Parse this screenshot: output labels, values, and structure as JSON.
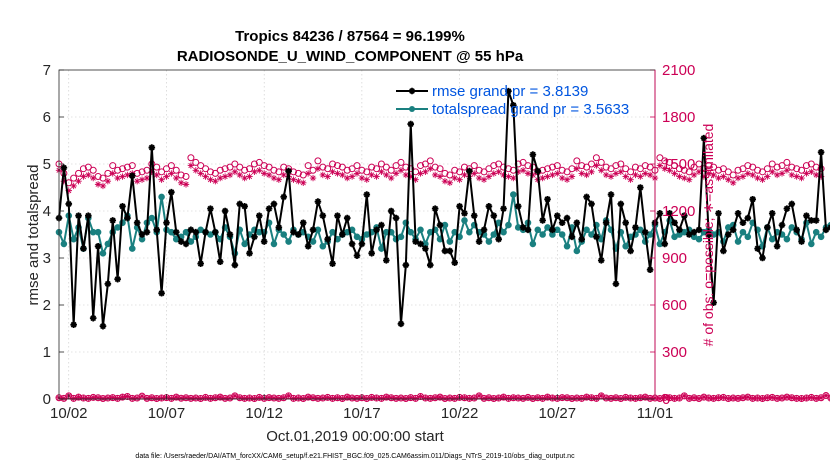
{
  "chart_data": {
    "type": "line",
    "title_line1": "Tropics 84236 / 87564 = 96.199%",
    "title_line2": "RADIOSONDE_U_WIND_COMPONENT @ 55 hPa",
    "ylabel_left": "rmse and totalspread",
    "ylabel_right": "# of obs: o=possible; ∗=assimilated",
    "xlabel": "Oct.01,2019 00:00:00 start",
    "footer": "data file: /Users/raeder/DAI/ATM_forcXX/CAM6_setup/f.e21.FHIST_BGC.f09_025.CAM6assim.011/Diags_NTrS_2019-10/obs_diag_output.nc",
    "ylim_left": [
      0,
      7
    ],
    "ylim_right": [
      0,
      2100
    ],
    "xlim": [
      1.5,
      32
    ],
    "yticks_left": [
      "0",
      "1",
      "2",
      "3",
      "4",
      "5",
      "6",
      "7"
    ],
    "yticks_right": [
      "0",
      "300",
      "600",
      "900",
      "1200",
      "1500",
      "1800",
      "2100"
    ],
    "xticks": [
      {
        "x": 2,
        "label": "10/02"
      },
      {
        "x": 7,
        "label": "10/07"
      },
      {
        "x": 12,
        "label": "10/12"
      },
      {
        "x": 17,
        "label": "10/17"
      },
      {
        "x": 22,
        "label": "10/22"
      },
      {
        "x": 27,
        "label": "10/27"
      },
      {
        "x": 32,
        "label": "11/01"
      }
    ],
    "colors": {
      "rmse": "#000000",
      "spread": "#1a8080",
      "obs": "#cc0055",
      "legend_text": "#0055e0"
    },
    "series": [
      {
        "name": "rmse",
        "legend": "rmse grand pr = 3.8139",
        "x_start": 1.5,
        "x_step": 0.25,
        "values": [
          3.85,
          4.92,
          4.15,
          1.58,
          3.9,
          3.2,
          3.9,
          1.72,
          3.25,
          1.55,
          2.45,
          3.8,
          2.55,
          4.1,
          3.85,
          4.75,
          3.75,
          3.5,
          3.55,
          5.35,
          3.6,
          2.25,
          3.75,
          4.4,
          3.55,
          3.35,
          3.3,
          3.6,
          3.55,
          2.88,
          3.55,
          4.05,
          3.55,
          2.92,
          4.0,
          3.5,
          2.85,
          4.15,
          4.1,
          3.1,
          3.45,
          3.9,
          3.35,
          4.05,
          4.15,
          3.65,
          4.3,
          4.85,
          3.55,
          3.5,
          3.75,
          3.25,
          3.6,
          4.2,
          3.9,
          3.4,
          2.88,
          3.9,
          3.5,
          3.85,
          3.3,
          3.05,
          3.3,
          4.35,
          3.1,
          3.6,
          3.7,
          2.95,
          4.0,
          3.85,
          1.6,
          2.85,
          5.85,
          3.35,
          3.3,
          3.2,
          2.85,
          4.05,
          3.7,
          3.15,
          3.15,
          2.9,
          4.1,
          3.95,
          4.85,
          3.9,
          3.35,
          3.6,
          4.1,
          3.9,
          3.4,
          4.05,
          6.55,
          6.25,
          4.1,
          3.65,
          3.6,
          5.2,
          4.85,
          3.8,
          4.25,
          3.6,
          3.9,
          3.75,
          3.85,
          3.45,
          3.75,
          3.4,
          4.3,
          4.15,
          3.45,
          2.95,
          3.75,
          4.35,
          2.45,
          4.15,
          3.75,
          3.15,
          3.65,
          4.5,
          3.55,
          2.75,
          3.75,
          3.95,
          3.3,
          3.95,
          3.75,
          3.6,
          3.9,
          3.5,
          3.55,
          3.6,
          5.55,
          3.5,
          2.05,
          3.95,
          3.15,
          3.5,
          3.6,
          3.95,
          3.75,
          3.85,
          4.25,
          3.2,
          3.0,
          3.65,
          3.95,
          3.25,
          3.7,
          4.05,
          4.15,
          3.6,
          3.35,
          3.9,
          3.8,
          3.8,
          5.25,
          3.6,
          3.65,
          4.25,
          4.5
        ]
      },
      {
        "name": "totalspread",
        "legend": "totalspread grand pr = 3.5633",
        "x_start": 1.5,
        "x_step": 0.25,
        "values": [
          3.55,
          3.3,
          3.9,
          3.4,
          3.65,
          3.2,
          3.85,
          3.55,
          3.55,
          3.1,
          3.3,
          3.55,
          3.65,
          3.75,
          3.9,
          3.2,
          3.65,
          3.4,
          3.75,
          3.85,
          3.55,
          4.3,
          3.6,
          3.55,
          3.4,
          3.45,
          3.55,
          3.35,
          3.45,
          3.6,
          3.55,
          3.5,
          3.55,
          3.4,
          3.65,
          3.45,
          3.1,
          3.6,
          3.3,
          3.5,
          3.6,
          3.55,
          3.55,
          3.75,
          3.3,
          3.6,
          3.5,
          3.35,
          3.6,
          3.5,
          3.55,
          3.45,
          3.35,
          3.6,
          3.25,
          3.35,
          3.55,
          3.4,
          3.5,
          3.55,
          3.6,
          3.45,
          3.4,
          3.5,
          3.55,
          3.65,
          3.2,
          3.55,
          3.55,
          3.4,
          3.45,
          3.75,
          3.55,
          3.4,
          3.6,
          3.3,
          3.55,
          3.6,
          3.4,
          3.7,
          3.35,
          3.55,
          3.45,
          3.8,
          3.55,
          3.7,
          3.55,
          3.5,
          3.35,
          3.5,
          3.75,
          3.55,
          3.7,
          4.35,
          3.65,
          3.6,
          3.75,
          3.3,
          3.6,
          3.5,
          3.65,
          3.5,
          3.6,
          3.5,
          3.25,
          3.65,
          3.15,
          3.35,
          3.6,
          3.5,
          3.7,
          3.4,
          3.8,
          3.6,
          3.2,
          3.55,
          3.25,
          3.45,
          3.5,
          3.6,
          3.35,
          3.5,
          3.7,
          3.3,
          3.55,
          3.8,
          3.45,
          3.5,
          3.55,
          3.6,
          3.45,
          3.4,
          3.55,
          3.6,
          3.5,
          3.55,
          3.35,
          3.65,
          3.7,
          3.35,
          3.55,
          3.45,
          3.75,
          3.6,
          3.25,
          3.65,
          3.4,
          3.55,
          3.5,
          3.4,
          3.65,
          3.55,
          3.4,
          3.75,
          3.3,
          3.55,
          3.45,
          3.65,
          3.7,
          3.4,
          3.55
        ]
      },
      {
        "name": "possible",
        "marker": "circle",
        "x_start": 1.5,
        "x_step": 0.25,
        "values": [
          1500,
          1440,
          1380,
          1410,
          1440,
          1470,
          1480,
          1460,
          1420,
          1410,
          1440,
          1490,
          1460,
          1470,
          1480,
          1490,
          1440,
          1450,
          1460,
          1500,
          1480,
          1450,
          1470,
          1490,
          1460,
          1430,
          1420,
          1540,
          1510,
          1490,
          1470,
          1450,
          1440,
          1460,
          1470,
          1480,
          1500,
          1480,
          1460,
          1470,
          1500,
          1510,
          1490,
          1480,
          1460,
          1450,
          1480,
          1470,
          1450,
          1440,
          1430,
          1490,
          1460,
          1520,
          1480,
          1470,
          1500,
          1490,
          1480,
          1460,
          1470,
          1490,
          1460,
          1450,
          1480,
          1470,
          1500,
          1480,
          1460,
          1490,
          1510,
          1480,
          1470,
          1450,
          1490,
          1500,
          1520,
          1480,
          1470,
          1440,
          1430,
          1460,
          1450,
          1480,
          1470,
          1490,
          1460,
          1450,
          1470,
          1490,
          1500,
          1480,
          1470,
          1460,
          1500,
          1510,
          1490,
          1480,
          1450,
          1460,
          1470,
          1480,
          1490,
          1460,
          1450,
          1470,
          1520,
          1490,
          1480,
          1500,
          1540,
          1510,
          1480,
          1470,
          1490,
          1500,
          1470,
          1450,
          1480,
          1470,
          1490,
          1480,
          1460,
          1540,
          1520,
          1510,
          1490,
          1470,
          1460,
          1450,
          1480,
          1500,
          1470,
          1490,
          1480,
          1460,
          1470,
          1450,
          1430,
          1460,
          1470,
          1490,
          1480,
          1460,
          1450,
          1470,
          1500,
          1480,
          1490,
          1510,
          1480,
          1470,
          1460,
          1490,
          1500,
          1480,
          1470
        ]
      },
      {
        "name": "assimilated",
        "marker": "asterisk",
        "x_start": 1.5,
        "x_step": 0.25,
        "values": [
          1460,
          1390,
          1330,
          1360,
          1390,
          1420,
          1430,
          1410,
          1370,
          1360,
          1390,
          1440,
          1410,
          1420,
          1430,
          1440,
          1390,
          1400,
          1410,
          1450,
          1430,
          1400,
          1420,
          1440,
          1410,
          1380,
          1370,
          1490,
          1460,
          1440,
          1420,
          1400,
          1390,
          1410,
          1420,
          1430,
          1450,
          1430,
          1410,
          1420,
          1450,
          1460,
          1440,
          1430,
          1410,
          1400,
          1430,
          1420,
          1400,
          1390,
          1380,
          1440,
          1410,
          1470,
          1430,
          1420,
          1450,
          1440,
          1430,
          1410,
          1420,
          1440,
          1410,
          1400,
          1430,
          1420,
          1450,
          1430,
          1410,
          1440,
          1460,
          1430,
          1420,
          1400,
          1440,
          1450,
          1470,
          1430,
          1420,
          1390,
          1380,
          1410,
          1400,
          1430,
          1420,
          1440,
          1410,
          1400,
          1420,
          1440,
          1450,
          1430,
          1420,
          1410,
          1450,
          1460,
          1440,
          1430,
          1400,
          1410,
          1420,
          1430,
          1440,
          1410,
          1400,
          1420,
          1470,
          1440,
          1430,
          1450,
          1490,
          1460,
          1430,
          1420,
          1440,
          1450,
          1420,
          1400,
          1430,
          1420,
          1440,
          1430,
          1410,
          1490,
          1470,
          1460,
          1440,
          1420,
          1410,
          1400,
          1430,
          1450,
          1420,
          1440,
          1430,
          1410,
          1420,
          1400,
          1380,
          1410,
          1420,
          1440,
          1430,
          1410,
          1400,
          1420,
          1450,
          1430,
          1440,
          1460,
          1430,
          1420,
          1410,
          1440,
          1450,
          1430,
          1420
        ]
      },
      {
        "name": "possible_low",
        "marker": "circle-asterisk",
        "x_start": 1.5,
        "x_step": 0.25,
        "values": [
          8,
          4,
          20,
          4,
          12,
          6,
          4,
          10,
          8,
          3,
          6,
          9,
          4,
          12,
          16,
          4,
          6,
          18,
          4,
          8,
          3,
          6,
          9,
          4,
          12,
          5,
          8,
          4,
          6,
          3,
          10,
          4,
          8,
          12,
          4,
          6,
          20,
          8,
          4,
          6,
          3,
          10,
          4,
          9,
          6,
          4,
          8,
          20,
          4,
          6,
          3,
          12,
          8,
          4,
          6,
          10,
          4,
          8,
          3,
          12,
          6,
          4,
          8,
          3,
          10,
          6,
          4,
          12,
          8,
          4,
          6,
          3,
          9,
          4,
          16,
          6,
          4,
          8,
          12,
          3,
          6,
          4,
          10,
          8,
          4,
          6,
          20,
          4,
          8,
          3,
          6,
          12,
          4,
          8,
          6,
          4,
          10,
          3,
          8,
          4,
          12,
          6,
          4,
          9,
          8,
          3,
          6,
          4,
          12,
          8,
          4,
          20,
          6,
          4,
          8,
          3,
          10,
          6,
          4,
          8,
          12,
          4,
          6,
          3,
          10,
          8,
          4,
          6,
          20,
          4,
          8,
          3,
          12,
          6,
          4,
          8,
          10,
          3,
          6,
          4,
          8,
          12,
          4,
          6,
          3,
          8,
          10,
          4,
          6,
          12,
          8,
          4,
          3,
          6,
          10,
          4,
          8,
          22,
          6
        ]
      }
    ]
  }
}
